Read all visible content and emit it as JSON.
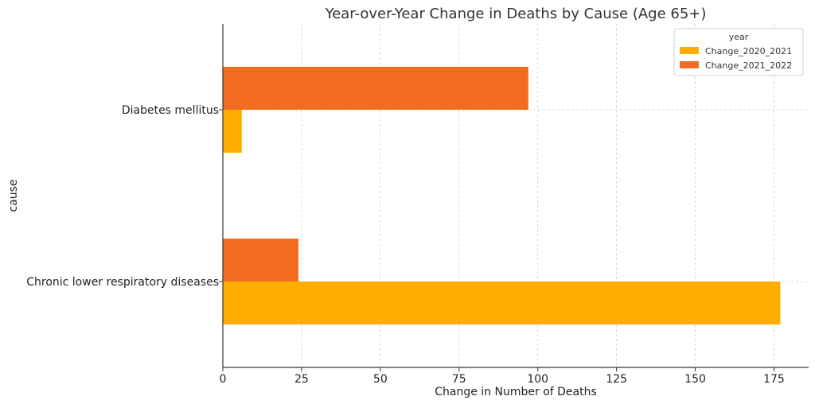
{
  "chart_data": {
    "type": "bar",
    "orientation": "horizontal",
    "title": "Year-over-Year Change in Deaths by Cause (Age 65+)",
    "xlabel": "Change in Number of Deaths",
    "ylabel": "cause",
    "categories": [
      "Chronic lower respiratory diseases",
      "Diabetes mellitus"
    ],
    "series": [
      {
        "name": "Change_2020_2021",
        "values": [
          177,
          6
        ],
        "color": "#FFAE00"
      },
      {
        "name": "Change_2021_2022",
        "values": [
          24,
          97
        ],
        "color": "#F26B21"
      }
    ],
    "xlim": [
      0,
      186
    ],
    "xticks": [
      0,
      25,
      50,
      75,
      100,
      125,
      150,
      175
    ],
    "grid": true,
    "legend": {
      "title": "year",
      "placement": "top-right"
    }
  }
}
